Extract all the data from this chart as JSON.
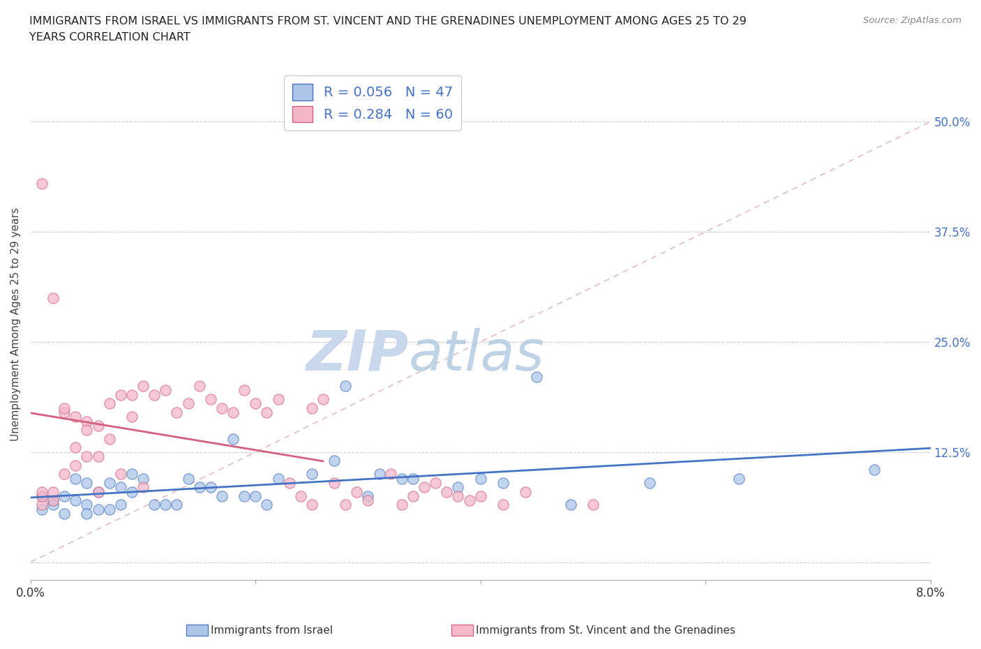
{
  "title_line1": "IMMIGRANTS FROM ISRAEL VS IMMIGRANTS FROM ST. VINCENT AND THE GRENADINES UNEMPLOYMENT AMONG AGES 25 TO 29",
  "title_line2": "YEARS CORRELATION CHART",
  "source": "Source: ZipAtlas.com",
  "ylabel": "Unemployment Among Ages 25 to 29 years",
  "xlim": [
    0.0,
    0.08
  ],
  "ylim": [
    -0.02,
    0.56
  ],
  "xticks": [
    0.0,
    0.02,
    0.04,
    0.06,
    0.08
  ],
  "xtick_labels": [
    "0.0%",
    "",
    "",
    "",
    "8.0%"
  ],
  "yticks": [
    0.0,
    0.125,
    0.25,
    0.375,
    0.5
  ],
  "ytick_labels": [
    "",
    "12.5%",
    "25.0%",
    "37.5%",
    "50.0%"
  ],
  "R_israel": 0.056,
  "N_israel": 47,
  "R_vincent": 0.284,
  "N_vincent": 60,
  "color_israel": "#adc6e8",
  "color_vincent": "#f5b8cb",
  "trendline_israel_color": "#4472c4",
  "trendline_vincent_color": "#d45f7f",
  "watermark_zip": "ZIP",
  "watermark_atlas": "atlas",
  "watermark_color": "#c8d8ec",
  "legend_label_israel": "Immigrants from Israel",
  "legend_label_vincent": "Immigrants from St. Vincent and the Grenadines",
  "israel_x": [
    0.001,
    0.001,
    0.002,
    0.002,
    0.003,
    0.003,
    0.004,
    0.004,
    0.005,
    0.005,
    0.005,
    0.006,
    0.006,
    0.007,
    0.007,
    0.008,
    0.008,
    0.009,
    0.009,
    0.01,
    0.011,
    0.012,
    0.013,
    0.014,
    0.015,
    0.016,
    0.017,
    0.018,
    0.019,
    0.02,
    0.021,
    0.022,
    0.025,
    0.027,
    0.028,
    0.03,
    0.031,
    0.033,
    0.034,
    0.038,
    0.04,
    0.042,
    0.045,
    0.048,
    0.055,
    0.063,
    0.075
  ],
  "israel_y": [
    0.06,
    0.075,
    0.07,
    0.065,
    0.075,
    0.055,
    0.095,
    0.07,
    0.09,
    0.065,
    0.055,
    0.08,
    0.06,
    0.09,
    0.06,
    0.085,
    0.065,
    0.08,
    0.1,
    0.095,
    0.065,
    0.065,
    0.065,
    0.095,
    0.085,
    0.085,
    0.075,
    0.14,
    0.075,
    0.075,
    0.065,
    0.095,
    0.1,
    0.115,
    0.2,
    0.075,
    0.1,
    0.095,
    0.095,
    0.085,
    0.095,
    0.09,
    0.21,
    0.065,
    0.09,
    0.095,
    0.105
  ],
  "vincent_x": [
    0.001,
    0.001,
    0.001,
    0.001,
    0.002,
    0.002,
    0.002,
    0.003,
    0.003,
    0.003,
    0.004,
    0.004,
    0.004,
    0.005,
    0.005,
    0.005,
    0.006,
    0.006,
    0.006,
    0.007,
    0.007,
    0.008,
    0.008,
    0.009,
    0.009,
    0.01,
    0.01,
    0.011,
    0.012,
    0.013,
    0.014,
    0.015,
    0.016,
    0.017,
    0.018,
    0.019,
    0.02,
    0.021,
    0.022,
    0.023,
    0.024,
    0.025,
    0.025,
    0.026,
    0.027,
    0.028,
    0.029,
    0.03,
    0.032,
    0.033,
    0.034,
    0.035,
    0.036,
    0.037,
    0.038,
    0.039,
    0.04,
    0.042,
    0.044,
    0.05
  ],
  "vincent_y": [
    0.065,
    0.075,
    0.08,
    0.43,
    0.07,
    0.08,
    0.3,
    0.1,
    0.17,
    0.175,
    0.11,
    0.165,
    0.13,
    0.16,
    0.12,
    0.15,
    0.12,
    0.155,
    0.08,
    0.14,
    0.18,
    0.19,
    0.1,
    0.165,
    0.19,
    0.2,
    0.085,
    0.19,
    0.195,
    0.17,
    0.18,
    0.2,
    0.185,
    0.175,
    0.17,
    0.195,
    0.18,
    0.17,
    0.185,
    0.09,
    0.075,
    0.175,
    0.065,
    0.185,
    0.09,
    0.065,
    0.08,
    0.07,
    0.1,
    0.065,
    0.075,
    0.085,
    0.09,
    0.08,
    0.075,
    0.07,
    0.075,
    0.065,
    0.08,
    0.065
  ]
}
